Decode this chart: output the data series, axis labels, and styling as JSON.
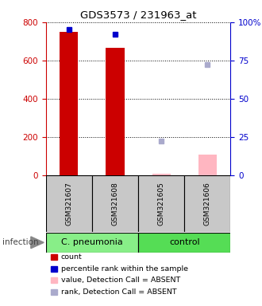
{
  "title": "GDS3573 / 231963_at",
  "samples": [
    "GSM321607",
    "GSM321608",
    "GSM321605",
    "GSM321606"
  ],
  "count_values": [
    750,
    665,
    8,
    105
  ],
  "count_is_absent": [
    false,
    false,
    true,
    true
  ],
  "percentile_present": [
    95,
    92,
    null,
    null
  ],
  "rank_absent_values": [
    null,
    null,
    22,
    72
  ],
  "ylim_left": [
    0,
    800
  ],
  "ylim_right": [
    0,
    100
  ],
  "yticks_left": [
    0,
    200,
    400,
    600,
    800
  ],
  "yticks_right": [
    0,
    25,
    50,
    75,
    100
  ],
  "yticklabels_right": [
    "0",
    "25",
    "50",
    "75",
    "100%"
  ],
  "left_tick_color": "#CC0000",
  "right_tick_color": "#0000CC",
  "bar_color_present": "#CC0000",
  "bar_color_absent": "#FFB6C1",
  "dot_color_present": "#0000CC",
  "dot_color_absent": "#AAAACC",
  "group_spans": [
    {
      "start": 0,
      "end": 1,
      "label": "C. pneumonia",
      "color": "#88EE88"
    },
    {
      "start": 2,
      "end": 3,
      "label": "control",
      "color": "#55DD55"
    }
  ],
  "infection_label": "infection",
  "legend_items": [
    {
      "color": "#CC0000",
      "label": "count"
    },
    {
      "color": "#0000CC",
      "label": "percentile rank within the sample"
    },
    {
      "color": "#FFB6C1",
      "label": "value, Detection Call = ABSENT"
    },
    {
      "color": "#AAAACC",
      "label": "rank, Detection Call = ABSENT"
    }
  ],
  "bar_width": 0.4,
  "sample_box_color": "#C8C8C8"
}
